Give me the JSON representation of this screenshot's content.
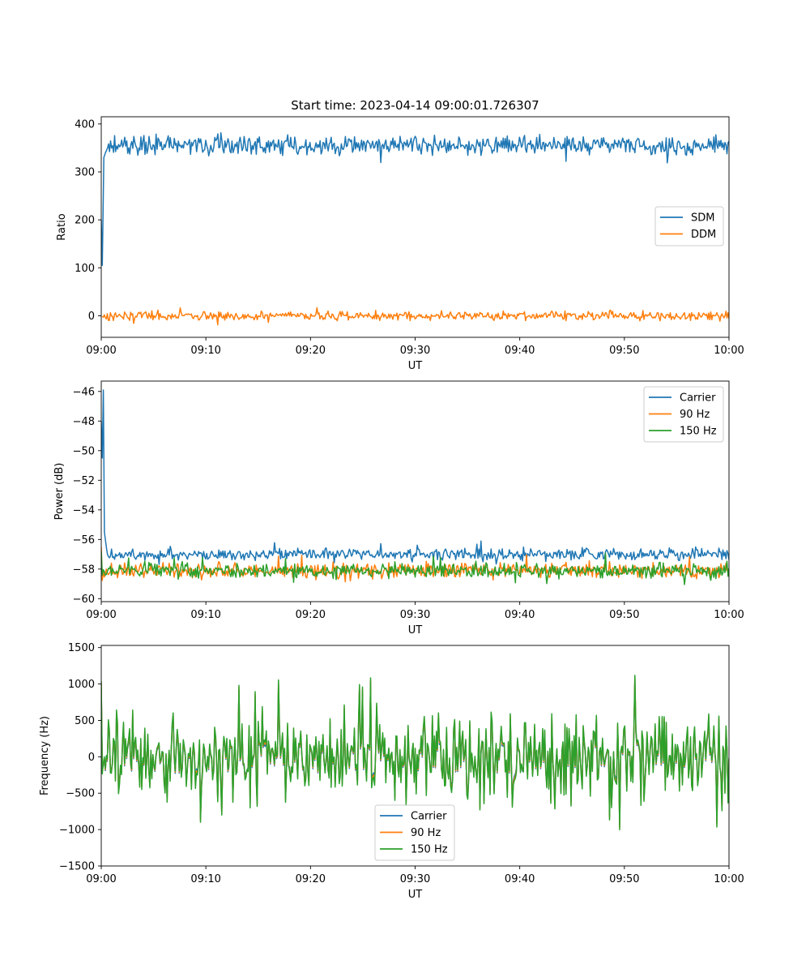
{
  "chart_data": [
    {
      "type": "line",
      "title": "Start time: 2023-04-14 09:00:01.726307",
      "xlabel": "UT",
      "ylabel": "Ratio",
      "x_ticks": [
        "09:00",
        "09:10",
        "09:20",
        "09:30",
        "09:40",
        "09:50",
        "10:00"
      ],
      "x_range_minutes": [
        0,
        60
      ],
      "y_ticks": [
        0,
        100,
        200,
        300,
        400
      ],
      "ylim": [
        -45,
        415
      ],
      "legend_position": "center-right",
      "series": [
        {
          "name": "SDM",
          "color": "#1f77b4",
          "approx_mean": 355,
          "approx_spread": 18,
          "initial_points": [
            [
              0.0,
              200
            ],
            [
              0.1,
              105
            ],
            [
              0.25,
              330
            ],
            [
              0.4,
              340
            ],
            [
              0.6,
              350
            ]
          ]
        },
        {
          "name": "DDM",
          "color": "#ff7f0e",
          "approx_mean": 0,
          "approx_spread": 8,
          "initial_points": []
        }
      ]
    },
    {
      "type": "line",
      "title": "",
      "xlabel": "UT",
      "ylabel": "Power (dB)",
      "x_ticks": [
        "09:00",
        "09:10",
        "09:20",
        "09:30",
        "09:40",
        "09:50",
        "10:00"
      ],
      "x_range_minutes": [
        0,
        60
      ],
      "y_ticks": [
        -60,
        -58,
        -56,
        -54,
        -52,
        -50,
        -48,
        -46
      ],
      "ylim": [
        -60.2,
        -45.3
      ],
      "legend_position": "top-right",
      "series": [
        {
          "name": "Carrier",
          "color": "#1f77b4",
          "approx_mean": -57.0,
          "approx_spread": 0.35,
          "initial_points": [
            [
              0.0,
              -48.0
            ],
            [
              0.1,
              -50.5
            ],
            [
              0.2,
              -45.9
            ],
            [
              0.3,
              -55.5
            ],
            [
              0.5,
              -56.6
            ]
          ]
        },
        {
          "name": "90 Hz",
          "color": "#ff7f0e",
          "approx_mean": -58.1,
          "approx_spread": 0.45,
          "initial_points": [
            [
              0.0,
              -56.5
            ]
          ]
        },
        {
          "name": "150 Hz",
          "color": "#2ca02c",
          "approx_mean": -58.1,
          "approx_spread": 0.45,
          "initial_points": [
            [
              0.0,
              -56.8
            ]
          ]
        }
      ]
    },
    {
      "type": "line",
      "title": "",
      "xlabel": "UT",
      "ylabel": "Frequency (Hz)",
      "x_ticks": [
        "09:00",
        "09:10",
        "09:20",
        "09:30",
        "09:40",
        "09:50",
        "10:00"
      ],
      "x_range_minutes": [
        0,
        60
      ],
      "y_ticks": [
        -1500,
        -1000,
        -500,
        0,
        500,
        1000,
        1500
      ],
      "ylim": [
        -1500,
        1530
      ],
      "legend_position": "bottom-center",
      "series": [
        {
          "name": "Carrier",
          "color": "#1f77b4",
          "approx_mean": 0,
          "approx_spread": 420,
          "offset": -60
        },
        {
          "name": "90 Hz",
          "color": "#ff7f0e",
          "approx_mean": 0,
          "approx_spread": 420,
          "offset": -30
        },
        {
          "name": "150 Hz",
          "color": "#2ca02c",
          "approx_mean": 0,
          "approx_spread": 420,
          "offset": 0
        }
      ]
    }
  ]
}
